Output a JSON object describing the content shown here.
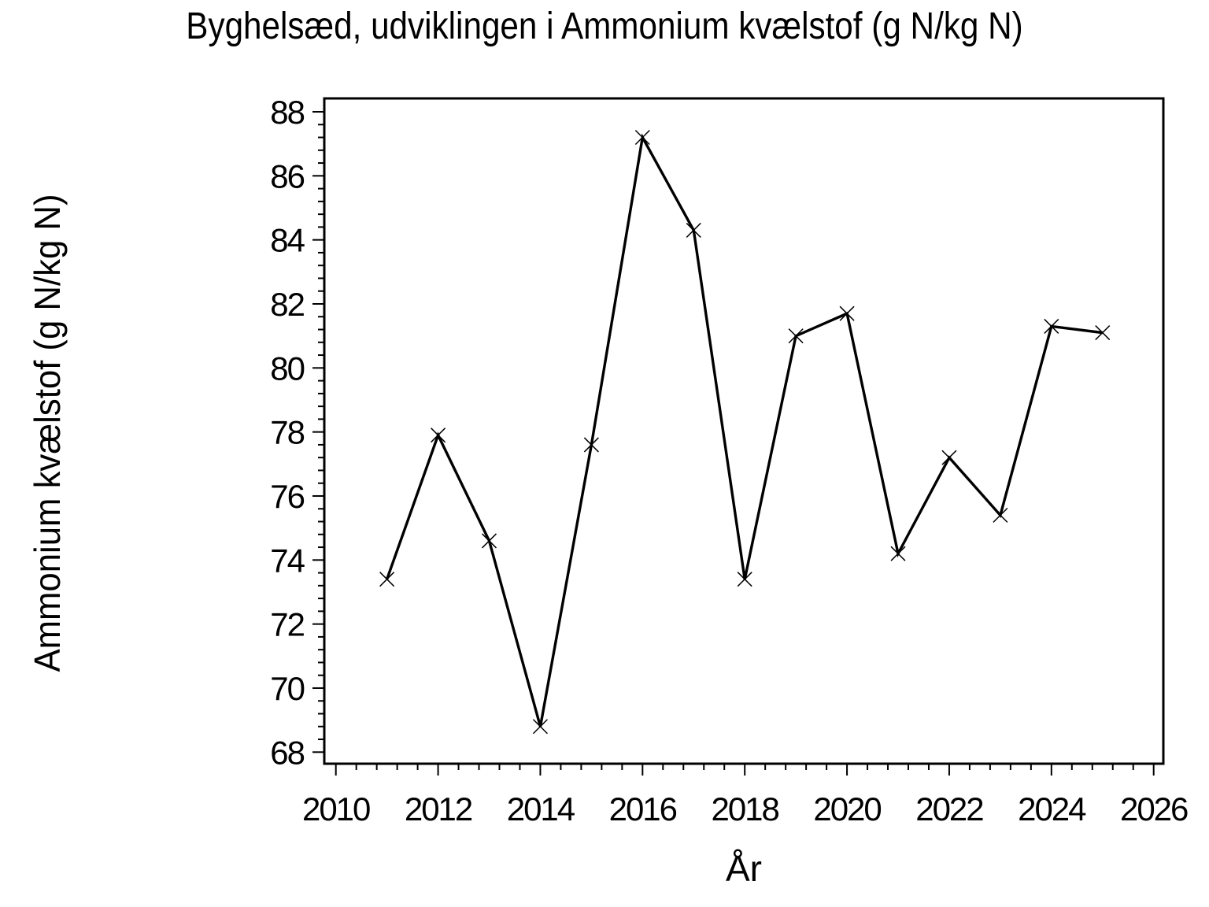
{
  "chart_data": {
    "type": "line",
    "title": "Byghelsæd, udviklingen i Ammonium kvælstof (g N/kg N)",
    "xlabel": "År",
    "ylabel": "Ammonium kvælstof (g N/kg N)",
    "x": [
      2011,
      2012,
      2013,
      2014,
      2015,
      2016,
      2017,
      2018,
      2019,
      2020,
      2021,
      2022,
      2023,
      2024,
      2025
    ],
    "y": [
      73.4,
      77.9,
      74.6,
      68.8,
      77.6,
      87.2,
      84.3,
      73.4,
      81.0,
      81.7,
      74.2,
      77.2,
      75.4,
      81.3,
      81.1
    ],
    "xlim": [
      2010,
      2026
    ],
    "ylim": [
      68,
      88
    ],
    "x_ticks": [
      2010,
      2012,
      2014,
      2016,
      2018,
      2020,
      2022,
      2024,
      2026
    ],
    "y_ticks": [
      68,
      70,
      72,
      74,
      76,
      78,
      80,
      82,
      84,
      86,
      88
    ],
    "x_minor_step": 0.4,
    "y_minor_step": 0.4,
    "marker": "x-cross",
    "line_color": "#000000",
    "axis_color": "#000000",
    "background": "#ffffff",
    "grid": false,
    "legend": false
  }
}
